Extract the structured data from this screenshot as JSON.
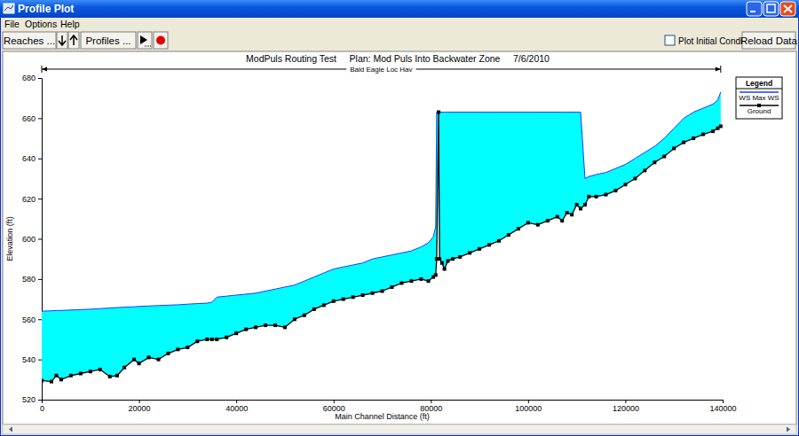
{
  "window": {
    "title": "Profile Plot",
    "menu": [
      "File",
      "Options",
      "Help"
    ],
    "buttons": [
      "Reaches ...",
      "Profiles ..."
    ],
    "checkbox": "Plot Initial Conditions",
    "reload": "Reload Data"
  },
  "chart_data": {
    "type": "line",
    "title": "ModPuls Routing Test     Plan: Mod Puls Into Backwater Zone     7/6/2010",
    "x_label": "Main Channel Distance (ft)",
    "y_label": "Elevation (ft)",
    "reach": {
      "label": "Bald Eagle Loc Hav",
      "x": [
        0,
        139600
      ]
    },
    "legend": "top-right",
    "legend_title": "Legend",
    "xlim": [
      0,
      140000
    ],
    "xticks": [
      0,
      20000,
      40000,
      60000,
      80000,
      100000,
      120000,
      140000
    ],
    "ylim": [
      520,
      680
    ],
    "yticks": [
      520,
      540,
      560,
      580,
      600,
      620,
      640,
      660,
      680
    ],
    "x": [
      0,
      2000,
      3000,
      4000,
      6000,
      8000,
      10000,
      12000,
      14000,
      15500,
      17000,
      19000,
      20000,
      22000,
      24000,
      26000,
      28000,
      30000,
      32000,
      34000,
      35000,
      36000,
      38000,
      40000,
      42000,
      44000,
      46000,
      48000,
      50000,
      52000,
      54000,
      56000,
      58000,
      60000,
      62000,
      64000,
      66000,
      68000,
      70000,
      72000,
      74000,
      76000,
      78000,
      79500,
      80500,
      81000,
      81200,
      81600,
      81800,
      82300,
      82800,
      83500,
      84500,
      86000,
      88000,
      90000,
      92000,
      94000,
      96000,
      98000,
      100000,
      102000,
      104000,
      106000,
      107000,
      108000,
      109000,
      110000,
      110800,
      111700,
      112500,
      114000,
      116000,
      118000,
      120000,
      122000,
      124000,
      126000,
      128000,
      130000,
      132000,
      134000,
      136000,
      138000,
      139000,
      139600
    ],
    "series": [
      {
        "name": "WS Max WS",
        "type": "area",
        "color": "#00ffff",
        "values": [
          564,
          564.2,
          564.3,
          564.4,
          564.6,
          564.8,
          565,
          565.3,
          565.6,
          565.8,
          566,
          566.2,
          566.4,
          566.6,
          566.8,
          567,
          567.2,
          567.5,
          567.8,
          568,
          568.5,
          571,
          571.5,
          572,
          572.5,
          573,
          574,
          575,
          576,
          577,
          579,
          581,
          583,
          585,
          586,
          587,
          588,
          590,
          591,
          592,
          593,
          594,
          596,
          598,
          601,
          606,
          663,
          663,
          663,
          663,
          663,
          663,
          663,
          663,
          663,
          663,
          663,
          663,
          663,
          663,
          663,
          663,
          663,
          663,
          663,
          663,
          663,
          663,
          663,
          630,
          631,
          632,
          633,
          635,
          637,
          640,
          643,
          646,
          650,
          655,
          660,
          663,
          665,
          667,
          669,
          673
        ]
      },
      {
        "name": "Ground",
        "type": "line",
        "color": "#000000",
        "marker": "square",
        "values": [
          529.5,
          529,
          532,
          530,
          532,
          533,
          534,
          535,
          531.5,
          532,
          536,
          540,
          538,
          541,
          540,
          543,
          545,
          546,
          549,
          550,
          550,
          550,
          551,
          553,
          555,
          556,
          557,
          557,
          556,
          560,
          562,
          565,
          567,
          569,
          570,
          571,
          572,
          573,
          574,
          576,
          578,
          579,
          580,
          579,
          581,
          582,
          590,
          663,
          590,
          588,
          585,
          589,
          590,
          591,
          593,
          595,
          597,
          599,
          602,
          605,
          608,
          607,
          609,
          611,
          609,
          613,
          612,
          617,
          615,
          617,
          621,
          621,
          622,
          624,
          627,
          630,
          634,
          638,
          641,
          645,
          648,
          650,
          652,
          653.5,
          655,
          656
        ]
      }
    ]
  }
}
